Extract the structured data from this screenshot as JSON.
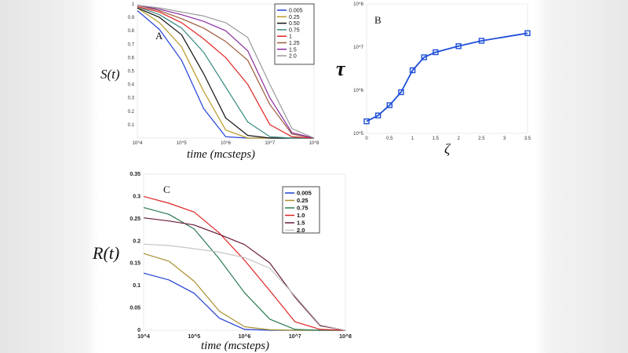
{
  "chart_data": [
    {
      "panel": "A",
      "type": "line",
      "ylabel": "S(t)",
      "xlabel": "time (mcsteps)",
      "xscale": "log",
      "xlim": [
        10000,
        100000000
      ],
      "ylim": [
        0,
        1
      ],
      "xtick_labels": [
        "10^4",
        "10^5",
        "10^6",
        "10^7",
        "10^8"
      ],
      "ytick_labels": [
        "0.1",
        "0.2",
        "0.3",
        "0.4",
        "0.5",
        "0.6",
        "0.7",
        "0.8",
        "0.9",
        "1"
      ],
      "legend": "top-right",
      "grid": false,
      "x": [
        10000,
        31623,
        100000,
        316228,
        1000000,
        3162278,
        10000000,
        31622777,
        100000000
      ],
      "series": [
        {
          "name": "0.005",
          "color": "#2040d8",
          "values": [
            0.95,
            0.81,
            0.58,
            0.22,
            0.01,
            0,
            0,
            0,
            0
          ]
        },
        {
          "name": "0.25",
          "color": "#b89a28",
          "values": [
            0.97,
            0.86,
            0.68,
            0.35,
            0.06,
            0,
            0,
            0,
            0
          ]
        },
        {
          "name": "0.50",
          "color": "#111111",
          "values": [
            0.97,
            0.9,
            0.77,
            0.48,
            0.15,
            0.02,
            0,
            0,
            0
          ]
        },
        {
          "name": "0.75",
          "color": "#3a8a80",
          "values": [
            0.98,
            0.92,
            0.82,
            0.64,
            0.38,
            0.12,
            0.01,
            0,
            0
          ]
        },
        {
          "name": "1",
          "color": "#e02424",
          "values": [
            0.98,
            0.94,
            0.86,
            0.74,
            0.6,
            0.4,
            0.1,
            0.01,
            0
          ]
        },
        {
          "name": "1.25",
          "color": "#9b5a3a",
          "values": [
            0.99,
            0.95,
            0.89,
            0.82,
            0.72,
            0.58,
            0.25,
            0.03,
            0
          ]
        },
        {
          "name": "1.5",
          "color": "#8a2aa0",
          "values": [
            0.99,
            0.96,
            0.92,
            0.87,
            0.8,
            0.65,
            0.3,
            0.04,
            0
          ]
        },
        {
          "name": "2.0",
          "color": "#999999",
          "values": [
            0.99,
            0.97,
            0.94,
            0.91,
            0.86,
            0.75,
            0.4,
            0.07,
            0
          ]
        }
      ]
    },
    {
      "panel": "B",
      "type": "line",
      "ylabel": "τ",
      "xlabel": "ζ",
      "yscale": "log",
      "xlim": [
        0,
        3.5
      ],
      "ylim": [
        100000,
        100000000
      ],
      "xtick_labels": [
        "0",
        "0.5",
        "1",
        "1.5",
        "2",
        "2.5",
        "3",
        "3.5"
      ],
      "ytick_labels": [
        "10^5",
        "10^6",
        "10^7",
        "10^8"
      ],
      "grid": false,
      "marker": "square",
      "color": "#1f4fd8",
      "x": [
        0,
        0.25,
        0.5,
        0.75,
        1,
        1.25,
        1.5,
        2,
        2.5,
        3.5
      ],
      "values": [
        190000,
        260000,
        450000,
        900000,
        2900000,
        5800000,
        7600000,
        10500000,
        14000000,
        21000000
      ]
    },
    {
      "panel": "C",
      "type": "line",
      "ylabel": "R(t)",
      "xlabel": "time (mcsteps)",
      "xscale": "log",
      "xlim": [
        10000,
        100000000
      ],
      "ylim": [
        0,
        0.35
      ],
      "xtick_labels": [
        "10^4",
        "10^5",
        "10^6",
        "10^7",
        "10^8"
      ],
      "ytick_labels": [
        "0",
        "0.05",
        "0.1",
        "0.15",
        "0.2",
        "0.25",
        "0.3",
        "0.35"
      ],
      "legend": "top-right",
      "grid": false,
      "x": [
        10000,
        31623,
        100000,
        316228,
        1000000,
        3162278,
        10000000,
        31622777,
        100000000
      ],
      "series": [
        {
          "name": "0.005",
          "color": "#2040d0",
          "values": [
            0.128,
            0.113,
            0.083,
            0.027,
            0.002,
            0,
            0,
            0,
            0
          ]
        },
        {
          "name": "0.25",
          "color": "#a89030",
          "values": [
            0.172,
            0.155,
            0.11,
            0.043,
            0.008,
            0.001,
            0,
            0,
            0
          ]
        },
        {
          "name": "0.75",
          "color": "#2a7a50",
          "values": [
            0.275,
            0.26,
            0.227,
            0.16,
            0.084,
            0.025,
            0.002,
            0,
            0
          ]
        },
        {
          "name": "1.0",
          "color": "#e02424",
          "values": [
            0.3,
            0.285,
            0.265,
            0.218,
            0.157,
            0.089,
            0.019,
            0.002,
            0
          ]
        },
        {
          "name": "1.5",
          "color": "#6a1a3a",
          "values": [
            0.252,
            0.245,
            0.236,
            0.215,
            0.192,
            0.151,
            0.074,
            0.01,
            0
          ]
        },
        {
          "name": "2.0",
          "color": "#c4c4c4",
          "values": [
            0.193,
            0.19,
            0.183,
            0.175,
            0.163,
            0.139,
            0.077,
            0.012,
            0
          ]
        }
      ]
    }
  ]
}
